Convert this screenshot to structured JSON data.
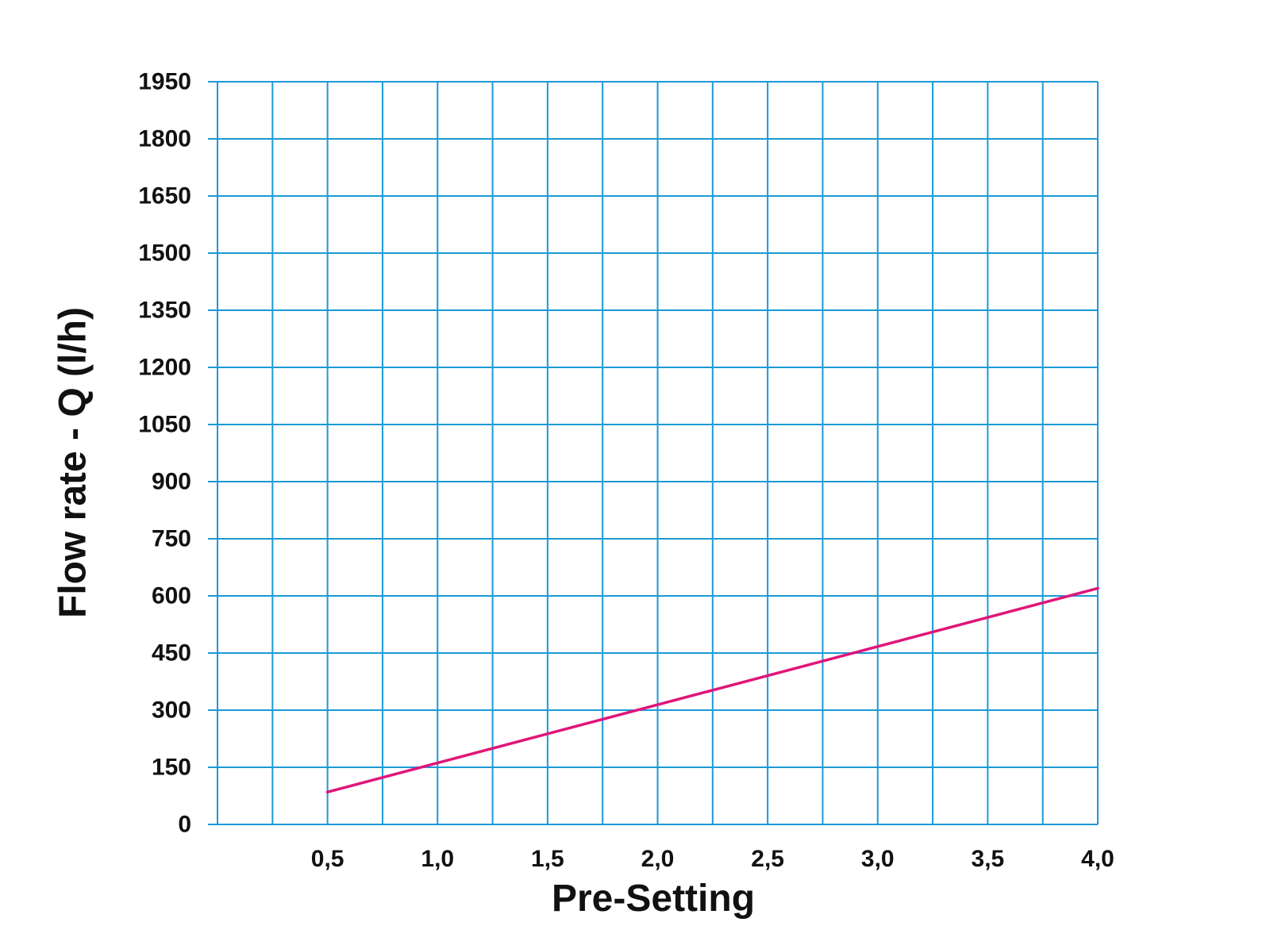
{
  "chart_data": {
    "type": "line",
    "title": "",
    "xlabel": "Pre-Setting",
    "ylabel": "Flow rate - Q (l/h)",
    "xlim": [
      0.0,
      4.0
    ],
    "ylim": [
      0,
      1950
    ],
    "x_ticks": [
      0.5,
      1.0,
      1.5,
      2.0,
      2.5,
      3.0,
      3.5,
      4.0
    ],
    "x_tick_labels": [
      "0,5",
      "1,0",
      "1,5",
      "2,0",
      "2,5",
      "3,0",
      "3,5",
      "4,0"
    ],
    "y_ticks": [
      0,
      150,
      300,
      450,
      600,
      750,
      900,
      1050,
      1200,
      1350,
      1500,
      1650,
      1800,
      1950
    ],
    "y_tick_labels": [
      "0",
      "150",
      "300",
      "450",
      "600",
      "750",
      "900",
      "1050",
      "1200",
      "1350",
      "1500",
      "1650",
      "1800",
      "1950"
    ],
    "x_grid_step": 0.25,
    "grid": true,
    "legend": "none",
    "series": [
      {
        "x": [
          0.5,
          4.0
        ],
        "y": [
          85,
          620
        ]
      }
    ],
    "colors": {
      "grid": "#1a9ad6",
      "line": "#e0157a",
      "text": "#111111"
    }
  }
}
